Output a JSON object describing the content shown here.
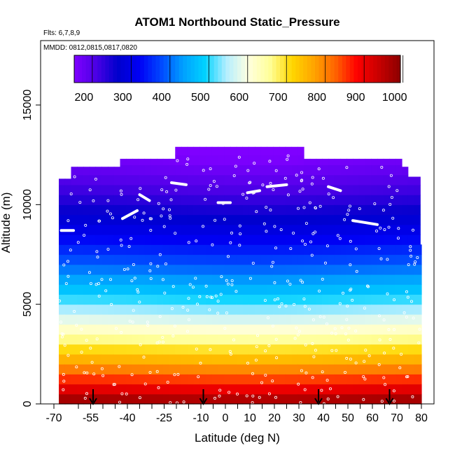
{
  "chart_data": {
    "type": "heatmap",
    "title": "ATOM1 Northbound Static_Pressure",
    "subtitle_flights": "Flts: 6,7,8,9",
    "subtitle_dates": "MMDD: 0812,0815,0817,0820",
    "xlabel": "Latitude (deg N)",
    "ylabel": "Altitude (m)",
    "xlim": [
      -70,
      80
    ],
    "ylim": [
      0,
      17500
    ],
    "x_tick_labels": [
      "-70",
      "-55",
      "-40",
      "-25",
      "-10",
      "0",
      "10",
      "20",
      "30",
      "40",
      "50",
      "60",
      "70",
      "80"
    ],
    "x_tick_values": [
      -70,
      -55,
      -40,
      -25,
      -10,
      0,
      10,
      20,
      30,
      40,
      50,
      60,
      70,
      80
    ],
    "x_extra_ticks": [
      -60,
      -50,
      -45,
      -35,
      -30,
      -20,
      -15,
      -5,
      5,
      15,
      25,
      35,
      45,
      55,
      65,
      75
    ],
    "y_tick_labels": [
      "0",
      "5000",
      "10000",
      "15000"
    ],
    "y_tick_values": [
      0,
      5000,
      10000,
      15000
    ],
    "colorbar": {
      "min": 175,
      "max": 1015,
      "tick_labels": [
        "200",
        "300",
        "400",
        "500",
        "600",
        "700",
        "800",
        "900",
        "1000"
      ],
      "tick_values": [
        200,
        300,
        400,
        500,
        600,
        700,
        800,
        900,
        1000
      ],
      "colors": [
        "#7f00ff",
        "#4b00e6",
        "#0000cc",
        "#0000f5",
        "#0048ff",
        "#00a0ff",
        "#00d2ff",
        "#b4eeff",
        "#ffffe0",
        "#ffff99",
        "#ffd700",
        "#ffa500",
        "#ff6400",
        "#ff0000",
        "#c80000",
        "#8c0000"
      ]
    },
    "grid": false,
    "legend": "top colorbar",
    "x_range": [
      -68,
      80
    ],
    "top_altitude_by_latitude": [
      {
        "lat": -68,
        "alt": 11300
      },
      {
        "lat": -64,
        "alt": 11900
      },
      {
        "lat": -45,
        "alt": 12300
      },
      {
        "lat": -22,
        "alt": 12900
      },
      {
        "lat": 32,
        "alt": 12300
      },
      {
        "lat": 70,
        "alt": 11900
      },
      {
        "lat": 74,
        "alt": 11400
      },
      {
        "lat": 78,
        "alt": 8000
      },
      {
        "lat": 80,
        "alt": 8000
      }
    ],
    "flight_track_segments": [
      {
        "lat": [
          -42,
          -36
        ],
        "alt": [
          9300,
          9700
        ]
      },
      {
        "lat": [
          -35,
          -31
        ],
        "alt": [
          10500,
          10200
        ]
      },
      {
        "lat": [
          -22,
          -16
        ],
        "alt": [
          11100,
          11000
        ]
      },
      {
        "lat": [
          -3,
          2
        ],
        "alt": [
          10100,
          10100
        ]
      },
      {
        "lat": [
          9,
          14
        ],
        "alt": [
          10600,
          10700
        ]
      },
      {
        "lat": [
          17,
          25
        ],
        "alt": [
          10900,
          11000
        ]
      },
      {
        "lat": [
          42,
          47
        ],
        "alt": [
          10900,
          10700
        ]
      },
      {
        "lat": [
          52,
          62
        ],
        "alt": [
          9200,
          9000
        ]
      },
      {
        "lat": [
          -67,
          -62
        ],
        "alt": [
          8700,
          8700
        ]
      }
    ],
    "profile_markers_lat": [
      -54,
      -9,
      38,
      67
    ]
  }
}
